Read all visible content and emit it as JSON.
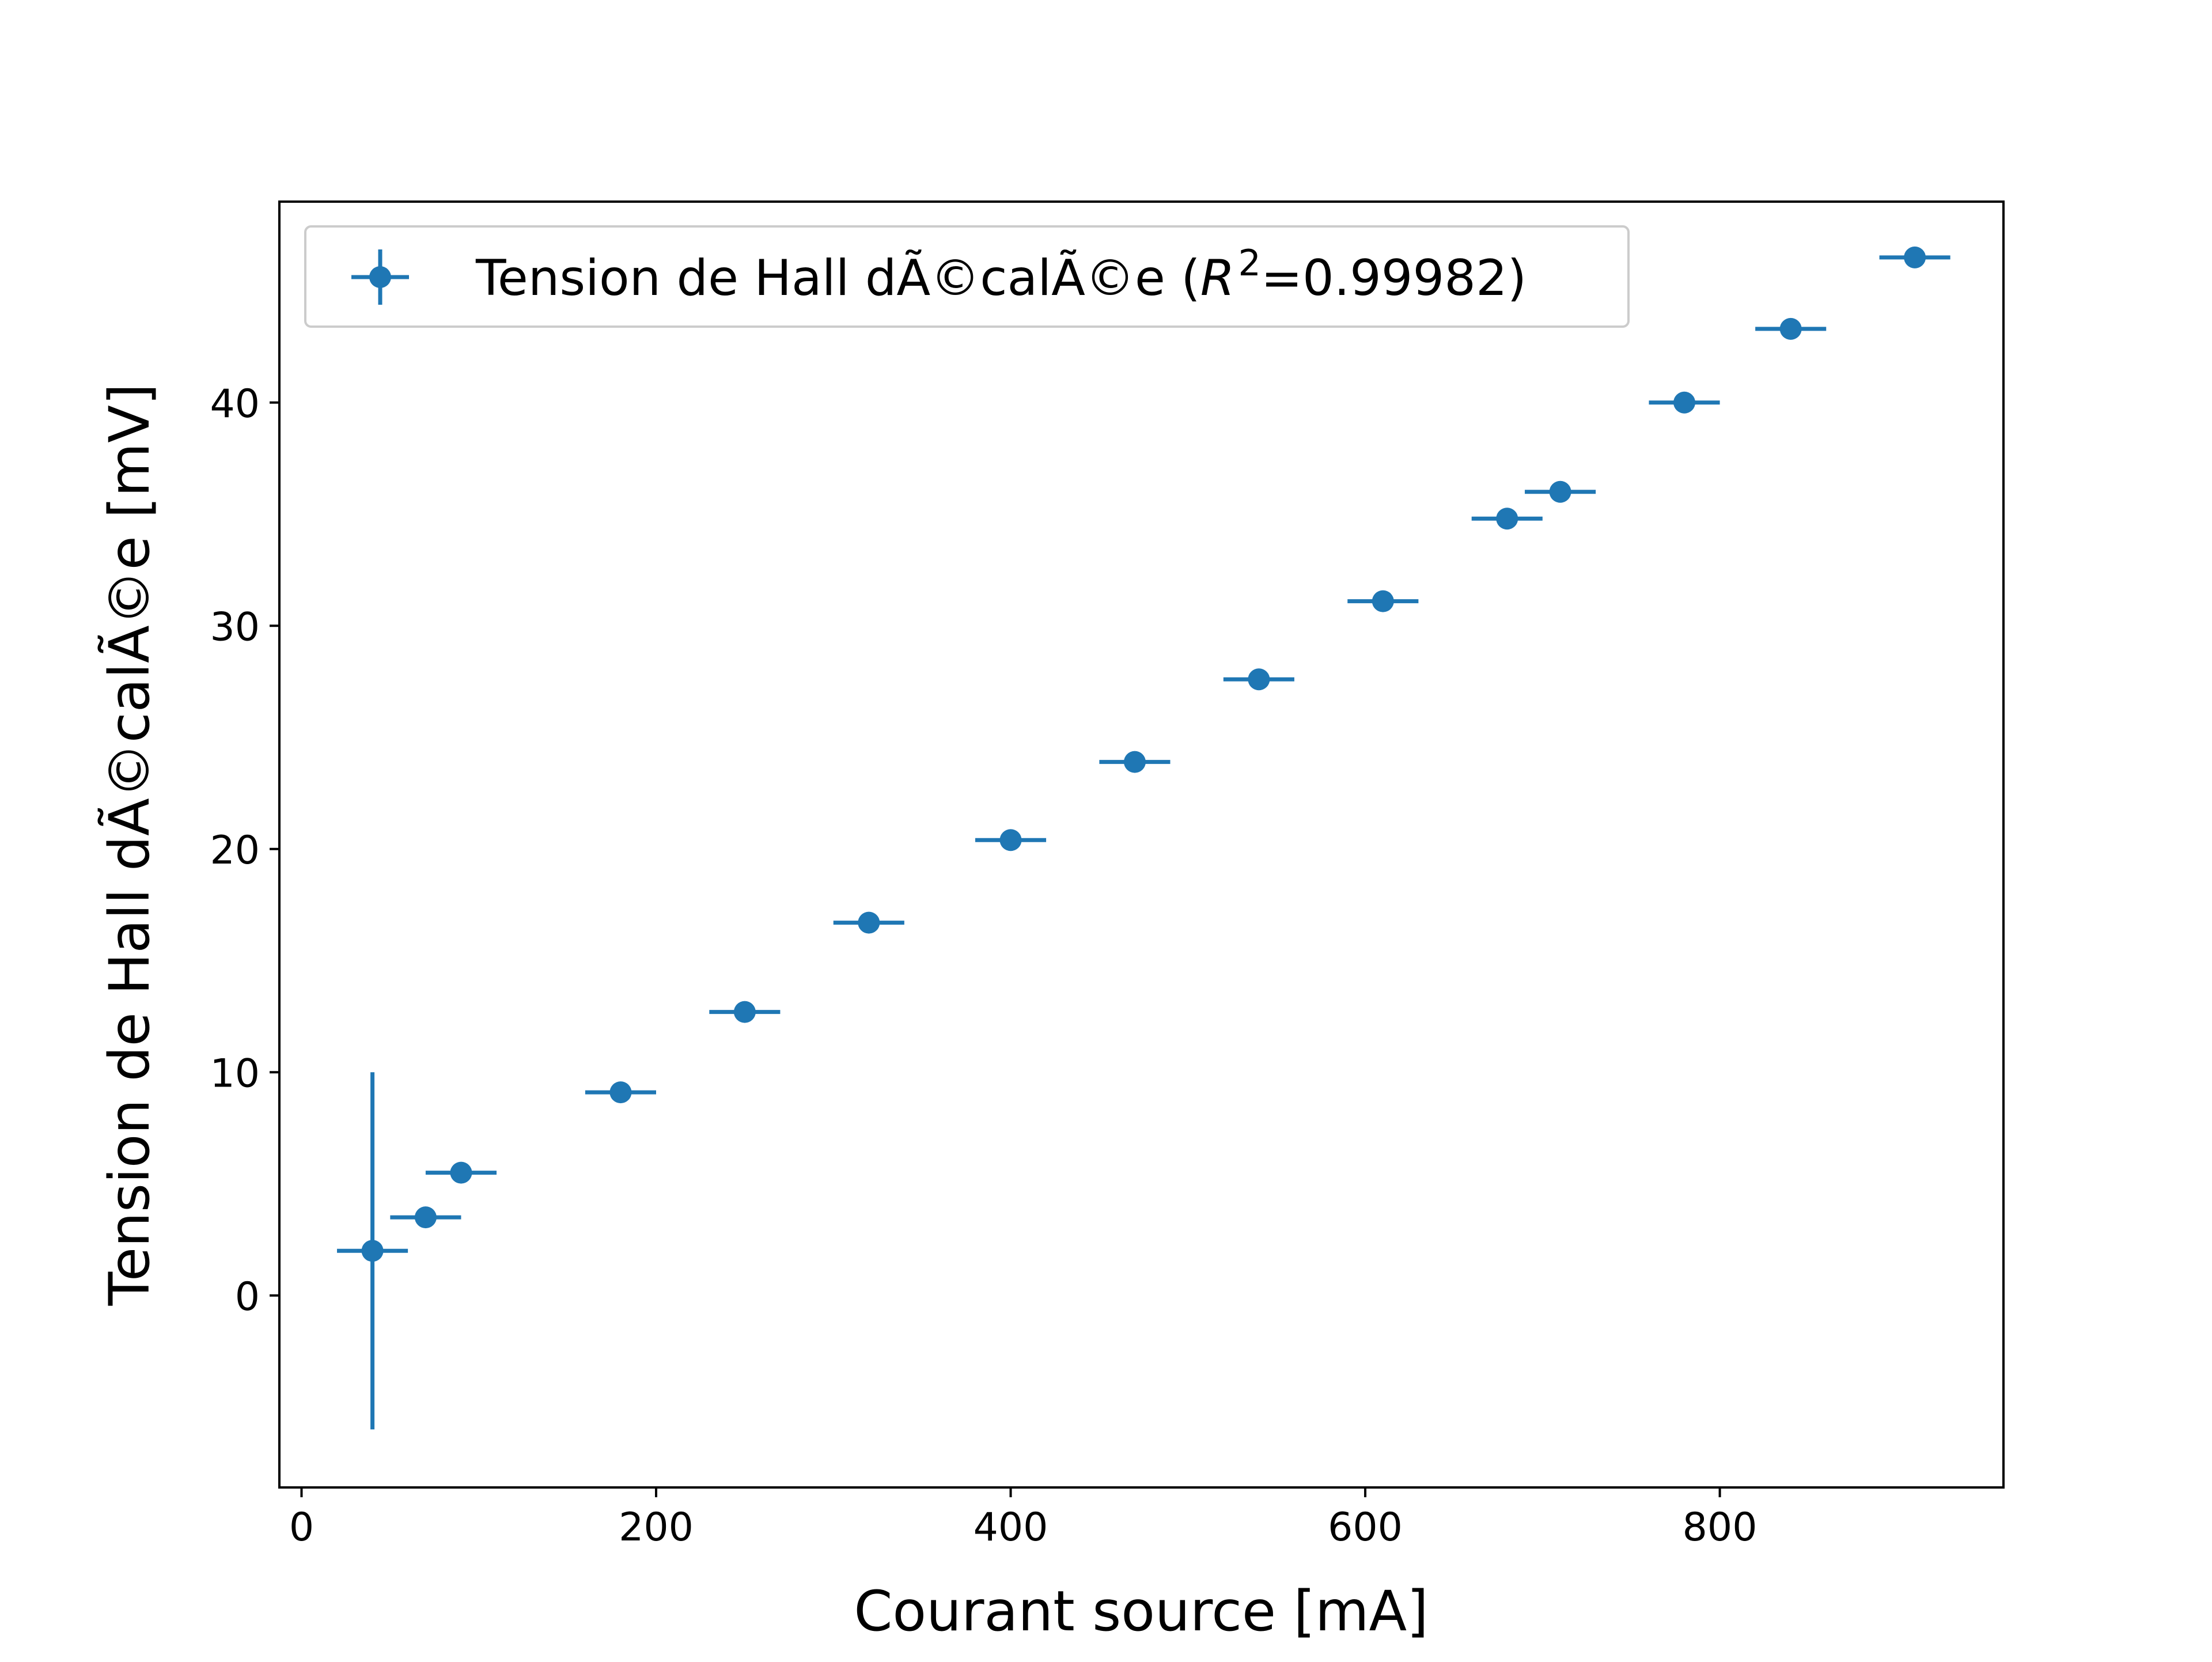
{
  "chart_data": {
    "type": "scatter",
    "style": "errorbar",
    "xlabel": "Courant source [mA]",
    "ylabel": "Tension de Hall dÃ©calÃ©e [mV]",
    "xlim": [
      -12.5,
      960
    ],
    "ylim": [
      -8.6,
      49
    ],
    "xticks": [
      0,
      200,
      400,
      600,
      800
    ],
    "xtick_labels": [
      "0",
      "200",
      "400",
      "600",
      "800"
    ],
    "yticks": [
      0,
      10,
      20,
      30,
      40
    ],
    "ytick_labels": [
      "0",
      "10",
      "20",
      "30",
      "40"
    ],
    "grid": false,
    "legend_position": "upper-left",
    "legend": {
      "prefix": "Tension de Hall dÃ©calÃ©e (",
      "r_symbol": "R",
      "superscript": "2",
      "suffix": "=0.99982)"
    },
    "series": [
      {
        "color": "#1f77b4",
        "x": [
          40,
          70,
          90,
          180,
          250,
          320,
          400,
          470,
          540,
          610,
          680,
          710,
          780,
          840,
          910
        ],
        "y": [
          2.0,
          3.5,
          5.5,
          9.1,
          12.7,
          16.7,
          20.4,
          23.9,
          27.6,
          31.1,
          34.8,
          36.0,
          40.0,
          43.3,
          46.5
        ],
        "xerr": [
          20,
          20,
          20,
          20,
          20,
          20,
          20,
          20,
          20,
          20,
          20,
          20,
          20,
          20,
          20
        ],
        "yerr": [
          8.0,
          0.1,
          0.1,
          0.1,
          0.1,
          0.1,
          0.1,
          0.1,
          0.1,
          0.1,
          0.1,
          0.1,
          0.1,
          0.1,
          0.1
        ]
      }
    ]
  }
}
